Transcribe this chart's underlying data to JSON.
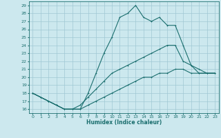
{
  "title": "",
  "xlabel": "Humidex (Indice chaleur)",
  "bg_color": "#cce8ee",
  "grid_color": "#a0c8d4",
  "line_color": "#1a6e6e",
  "xlim": [
    -0.5,
    23.5
  ],
  "ylim": [
    15.5,
    29.5
  ],
  "yticks": [
    16,
    17,
    18,
    19,
    20,
    21,
    22,
    23,
    24,
    25,
    26,
    27,
    28,
    29
  ],
  "xticks": [
    0,
    1,
    2,
    3,
    4,
    5,
    6,
    7,
    8,
    9,
    10,
    11,
    12,
    13,
    14,
    15,
    16,
    17,
    18,
    19,
    20,
    21,
    22,
    23
  ],
  "line1_x": [
    0,
    1,
    2,
    3,
    4,
    5,
    6,
    7,
    8,
    9,
    10,
    11,
    12,
    13,
    14,
    15,
    16,
    17,
    18,
    19,
    20,
    21,
    22,
    23
  ],
  "line1_y": [
    18,
    17.5,
    17,
    16.5,
    16,
    16,
    16,
    18,
    20.5,
    23,
    25,
    27.5,
    28,
    29,
    27.5,
    27,
    27.5,
    26.5,
    26.5,
    24,
    21.5,
    21,
    20.5,
    20.5
  ],
  "line2_x": [
    0,
    1,
    2,
    3,
    4,
    5,
    6,
    7,
    8,
    9,
    10,
    11,
    12,
    13,
    14,
    15,
    16,
    17,
    18,
    19,
    20,
    21,
    22,
    23
  ],
  "line2_y": [
    18,
    17.5,
    17,
    16.5,
    16,
    16,
    16.5,
    17.5,
    18.5,
    19.5,
    20.5,
    21,
    21.5,
    22,
    22.5,
    23,
    23.5,
    24,
    24,
    22,
    21.5,
    20.5,
    20.5,
    20.5
  ],
  "line3_x": [
    0,
    1,
    2,
    3,
    4,
    5,
    6,
    7,
    8,
    9,
    10,
    11,
    12,
    13,
    14,
    15,
    16,
    17,
    18,
    19,
    20,
    21,
    22,
    23
  ],
  "line3_y": [
    18,
    17.5,
    17,
    16.5,
    16,
    16,
    16,
    16.5,
    17,
    17.5,
    18,
    18.5,
    19,
    19.5,
    20,
    20,
    20.5,
    20.5,
    21,
    21,
    20.5,
    20.5,
    20.5,
    20.5
  ]
}
